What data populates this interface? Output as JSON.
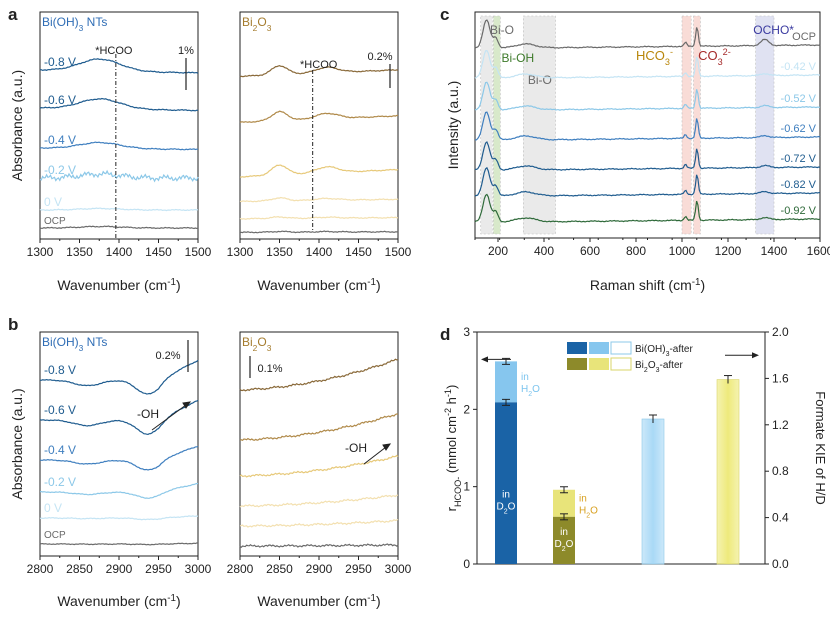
{
  "colors": {
    "axis": "#222222",
    "bioh_dark": "#1f5c8f",
    "bioh_mid": "#3f7fbf",
    "bioh_light": "#8cc8e8",
    "bioh_vlight": "#c4e4f4",
    "bi2o3_dark": "#8a6a3a",
    "bi2o3_mid": "#b08a4a",
    "bi2o3_light": "#e7c97a",
    "bi2o3_vlight": "#f3e0b0",
    "ocp": "#6a6a6a",
    "raman_green": "#2f6a3a",
    "bar_bioh_d2o": "#1a63a6",
    "bar_bioh_h2o": "#86c6ee",
    "bar_bi2o3_d2o": "#8d8a2a",
    "bar_bi2o3_h2o": "#e8e47a",
    "bar_kie_bioh": "#a9d9f6",
    "bar_kie_bi2o3": "#eeea7c",
    "band_gray": "#d9d9d9",
    "band_green": "#b9d8a0",
    "band_red": "#f5c0b8",
    "band_blue": "#c8cce8",
    "label_bio": "#2f6db5",
    "label_bi2o3": "#a57c2e",
    "label_green": "#3d7a2a",
    "label_hco3": "#b8860b",
    "label_co3": "#a52a2a",
    "label_ocho": "#3a3aa0"
  },
  "chart_data": [
    {
      "panel": "a",
      "type": "line",
      "subpanels": [
        {
          "title": "Bi(OH)3 NTs",
          "xlabel": "Wavenumber (cm-1)",
          "xlim": [
            1300,
            1500
          ],
          "ticks": [
            "1300",
            "1350",
            "1400",
            "1450",
            "1500"
          ],
          "ylabel": "Absorbance (a.u.)",
          "annotation": "*HCOO",
          "marker_x": 1396,
          "scale_bar": "1%",
          "series": [
            {
              "name": "-0.8 V",
              "color_key": "bioh_dark"
            },
            {
              "name": "-0.6 V",
              "color_key": "bioh_dark"
            },
            {
              "name": "-0.4 V",
              "color_key": "bioh_mid"
            },
            {
              "name": "-0.2 V",
              "color_key": "bioh_light"
            },
            {
              "name": "0 V",
              "color_key": "bioh_vlight"
            },
            {
              "name": "OCP",
              "color_key": "ocp"
            }
          ]
        },
        {
          "title": "Bi2O3",
          "xlabel": "Wavenumber (cm-1)",
          "xlim": [
            1300,
            1500
          ],
          "ticks": [
            "1300",
            "1350",
            "1400",
            "1450",
            "1500"
          ],
          "annotation": "*HCOO",
          "marker_x": 1392,
          "scale_bar": "0.2%",
          "series": [
            {
              "name": "-0.8 V",
              "color_key": "bi2o3_dark"
            },
            {
              "name": "-0.6 V",
              "color_key": "bi2o3_mid"
            },
            {
              "name": "-0.4 V",
              "color_key": "bi2o3_light"
            },
            {
              "name": "-0.2 V",
              "color_key": "bi2o3_vlight"
            },
            {
              "name": "0 V",
              "color_key": "bi2o3_vlight"
            },
            {
              "name": "OCP",
              "color_key": "ocp"
            }
          ]
        }
      ]
    },
    {
      "panel": "b",
      "type": "line",
      "subpanels": [
        {
          "title": "Bi(OH)3 NTs",
          "xlabel": "Wavenumber (cm-1)",
          "xlim": [
            2800,
            3000
          ],
          "ticks": [
            "2800",
            "2850",
            "2900",
            "2950",
            "3000"
          ],
          "ylabel": "Absorbance (a.u.)",
          "annotation": "-OH",
          "scale_bar": "0.2%",
          "series": [
            {
              "name": "-0.8 V",
              "color_key": "bioh_dark"
            },
            {
              "name": "-0.6 V",
              "color_key": "bioh_dark"
            },
            {
              "name": "-0.4 V",
              "color_key": "bioh_mid"
            },
            {
              "name": "-0.2 V",
              "color_key": "bioh_light"
            },
            {
              "name": "0 V",
              "color_key": "bioh_vlight"
            },
            {
              "name": "OCP",
              "color_key": "ocp"
            }
          ]
        },
        {
          "title": "Bi2O3",
          "xlabel": "Wavenumber (cm-1)",
          "xlim": [
            2800,
            3000
          ],
          "ticks": [
            "2800",
            "2850",
            "2900",
            "2950",
            "3000"
          ],
          "annotation": "-OH",
          "scale_bar": "0.1%",
          "series": [
            {
              "name": "-0.8 V",
              "color_key": "bi2o3_dark"
            },
            {
              "name": "-0.6 V",
              "color_key": "bi2o3_mid"
            },
            {
              "name": "-0.4 V",
              "color_key": "bi2o3_light"
            },
            {
              "name": "-0.2 V",
              "color_key": "bi2o3_vlight"
            },
            {
              "name": "0 V",
              "color_key": "bi2o3_vlight"
            },
            {
              "name": "OCP",
              "color_key": "ocp"
            }
          ]
        }
      ]
    },
    {
      "panel": "c",
      "type": "line",
      "xlabel": "Raman shift (cm-1)",
      "ylabel": "Intensity (a.u.)",
      "xlim": [
        100,
        1600
      ],
      "ticks": [
        "200",
        "400",
        "600",
        "800",
        "1000",
        "1200",
        "1400",
        "1600"
      ],
      "bands": [
        {
          "label": "Bi-O",
          "x0": 125,
          "x1": 175,
          "color_key": "band_gray",
          "label_color_key": "ocp"
        },
        {
          "label": "Bi-OH",
          "x0": 180,
          "x1": 210,
          "color_key": "band_green",
          "label_color_key": "label_green"
        },
        {
          "label": "Bi-O",
          "x0": 310,
          "x1": 450,
          "color_key": "band_gray",
          "label_color_key": "ocp"
        },
        {
          "label": "HCO3-",
          "x0": 1000,
          "x1": 1040,
          "color_key": "band_red",
          "label_color_key": "label_hco3"
        },
        {
          "label": "CO3 2-",
          "x0": 1050,
          "x1": 1080,
          "color_key": "band_red",
          "label_color_key": "label_co3"
        },
        {
          "label": "OCHO*",
          "x0": 1320,
          "x1": 1400,
          "color_key": "band_blue",
          "label_color_key": "label_ocho"
        }
      ],
      "series": [
        {
          "name": "OCP",
          "color_key": "ocp"
        },
        {
          "name": "-0.42 V",
          "color_key": "bioh_vlight"
        },
        {
          "name": "-0.52 V",
          "color_key": "bioh_light"
        },
        {
          "name": "-0.62 V",
          "color_key": "bioh_mid"
        },
        {
          "name": "-0.72 V",
          "color_key": "bioh_dark"
        },
        {
          "name": "-0.82 V",
          "color_key": "bioh_dark"
        },
        {
          "name": "-0.92 V",
          "color_key": "raman_green"
        }
      ]
    },
    {
      "panel": "d",
      "type": "bar",
      "ylabel_left": "rHCOO- (mmol cm-2 h-1)",
      "ylabel_right": "Formate KIE of H/D",
      "ylim_left": [
        0,
        3
      ],
      "ylim_right": [
        0,
        2.0
      ],
      "left_ticks": [
        "0",
        "1",
        "2",
        "3"
      ],
      "right_ticks": [
        "0.0",
        "0.4",
        "0.8",
        "1.2",
        "1.6",
        "2.0"
      ],
      "legend": [
        {
          "label": "Bi(OH)3-after"
        },
        {
          "label": "Bi2O3-after"
        }
      ],
      "stacked": [
        {
          "catalyst": "Bi(OH)3",
          "d2o": 2.09,
          "h2o": 2.62,
          "label_d2o": "in D2O",
          "label_h2o": "in H2O"
        },
        {
          "catalyst": "Bi2O3",
          "d2o": 0.61,
          "h2o": 0.96,
          "label_d2o": "in D2O",
          "label_h2o": "in H2O"
        }
      ],
      "kie": [
        {
          "catalyst": "Bi(OH)3",
          "value": 1.25
        },
        {
          "catalyst": "Bi2O3",
          "value": 1.59
        }
      ]
    }
  ],
  "labels": {
    "a": "a",
    "b": "b",
    "c": "c",
    "d": "d",
    "sup_minus1": "-1",
    "v_neg08": "-0.8 V",
    "v_neg06": "-0.6 V",
    "v_neg04": "-0.4 V",
    "v_neg02": "-0.2 V",
    "v_0": "0 V",
    "ocp": "OCP"
  }
}
